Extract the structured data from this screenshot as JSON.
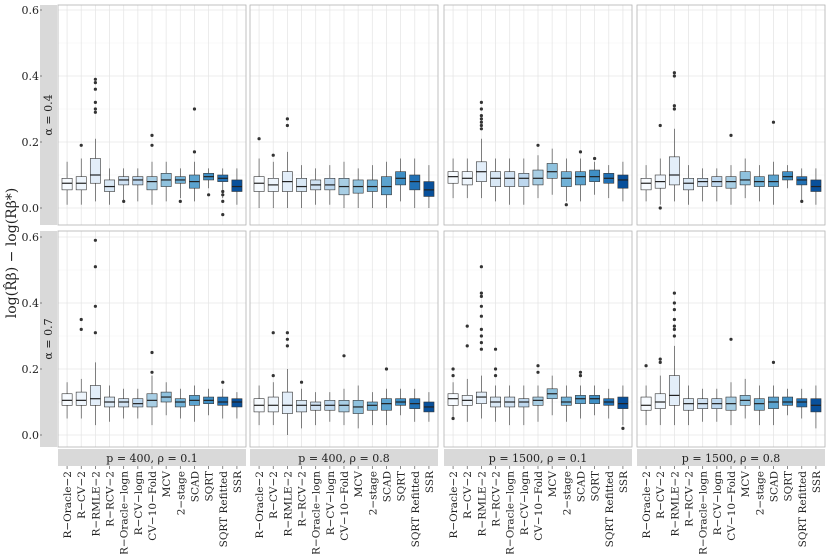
{
  "chart_data": {
    "type": "boxplot",
    "ylabel": "log(R̂β) − log(Rβ*)",
    "ylim": [
      0,
      0.6
    ],
    "yticks": [
      0.0,
      0.2,
      0.4,
      0.6
    ],
    "ytick_labels": [
      "0.0",
      "0.2",
      "0.4",
      "0.6"
    ],
    "methods": [
      "R−Oracle−2",
      "R−CV−2",
      "R−RMLE−2",
      "R−RCV−2",
      "R−Oracle−logn",
      "R−CV−logn",
      "CV−10−Fold",
      "MCV",
      "2−stage",
      "SCAD",
      "SQRT",
      "SQRT Refitted",
      "SSR"
    ],
    "method_colors": [
      "#f7fbff",
      "#eef5fc",
      "#e3eef9",
      "#d9e8f5",
      "#cfe1f2",
      "#bdd7ee",
      "#a8cee4",
      "#8fc2de",
      "#72b2d7",
      "#5ba3cf",
      "#3f8fc5",
      "#2171b5",
      "#08509b"
    ],
    "rows": [
      "α = 0.4",
      "α = 0.7"
    ],
    "columns": [
      "p = 400, ρ = 0.1",
      "p = 400, ρ = 0.8",
      "p = 1500, ρ = 0.1",
      "p = 1500, ρ = 0.8"
    ],
    "panels": [
      [
        [
          [
            0.01,
            0.055,
            0.075,
            0.09,
            0.14
          ],
          [
            0.01,
            0.055,
            0.075,
            0.095,
            0.15
          ],
          [
            0.02,
            0.075,
            0.1,
            0.15,
            0.21
          ],
          [
            0.01,
            0.05,
            0.065,
            0.085,
            0.12
          ],
          [
            0.02,
            0.07,
            0.085,
            0.095,
            0.12
          ],
          [
            0.02,
            0.07,
            0.085,
            0.095,
            0.12
          ],
          [
            0.01,
            0.055,
            0.08,
            0.095,
            0.14
          ],
          [
            0.02,
            0.065,
            0.085,
            0.105,
            0.14
          ],
          [
            0.03,
            0.075,
            0.085,
            0.095,
            0.12
          ],
          [
            0.02,
            0.06,
            0.08,
            0.1,
            0.14
          ],
          [
            0.06,
            0.085,
            0.095,
            0.105,
            0.12
          ],
          [
            0.03,
            0.08,
            0.09,
            0.1,
            0.12
          ],
          [
            0.01,
            0.05,
            0.065,
            0.085,
            0.12
          ]
        ],
        [
          [
            0.0,
            0.05,
            0.075,
            0.095,
            0.15
          ],
          [
            0.0,
            0.05,
            0.07,
            0.09,
            0.14
          ],
          [
            0.0,
            0.05,
            0.08,
            0.11,
            0.17
          ],
          [
            0.0,
            0.05,
            0.065,
            0.09,
            0.13
          ],
          [
            0.01,
            0.055,
            0.07,
            0.085,
            0.12
          ],
          [
            0.01,
            0.055,
            0.07,
            0.09,
            0.13
          ],
          [
            0.0,
            0.04,
            0.065,
            0.09,
            0.14
          ],
          [
            0.0,
            0.045,
            0.065,
            0.085,
            0.12
          ],
          [
            0.0,
            0.05,
            0.065,
            0.085,
            0.13
          ],
          [
            0.0,
            0.04,
            0.065,
            0.095,
            0.14
          ],
          [
            0.02,
            0.07,
            0.09,
            0.11,
            0.15
          ],
          [
            0.0,
            0.055,
            0.08,
            0.1,
            0.15
          ],
          [
            0.0,
            0.035,
            0.055,
            0.08,
            0.13
          ]
        ],
        [
          [
            0.03,
            0.075,
            0.095,
            0.11,
            0.15
          ],
          [
            0.03,
            0.07,
            0.09,
            0.11,
            0.15
          ],
          [
            0.03,
            0.08,
            0.11,
            0.14,
            0.21
          ],
          [
            0.02,
            0.065,
            0.09,
            0.11,
            0.15
          ],
          [
            0.01,
            0.065,
            0.09,
            0.11,
            0.15
          ],
          [
            0.01,
            0.065,
            0.09,
            0.105,
            0.15
          ],
          [
            0.03,
            0.07,
            0.09,
            0.115,
            0.16
          ],
          [
            0.04,
            0.09,
            0.11,
            0.135,
            0.18
          ],
          [
            0.02,
            0.065,
            0.09,
            0.11,
            0.15
          ],
          [
            0.02,
            0.07,
            0.095,
            0.11,
            0.15
          ],
          [
            0.04,
            0.08,
            0.095,
            0.115,
            0.14
          ],
          [
            0.03,
            0.075,
            0.09,
            0.105,
            0.13
          ],
          [
            0.02,
            0.06,
            0.085,
            0.1,
            0.14
          ]
        ],
        [
          [
            0.02,
            0.055,
            0.075,
            0.09,
            0.13
          ],
          [
            0.01,
            0.06,
            0.08,
            0.1,
            0.15
          ],
          [
            0.02,
            0.07,
            0.1,
            0.155,
            0.24
          ],
          [
            0.01,
            0.055,
            0.075,
            0.09,
            0.13
          ],
          [
            0.02,
            0.065,
            0.08,
            0.09,
            0.12
          ],
          [
            0.02,
            0.065,
            0.08,
            0.095,
            0.12
          ],
          [
            0.01,
            0.06,
            0.08,
            0.095,
            0.13
          ],
          [
            0.03,
            0.07,
            0.085,
            0.11,
            0.15
          ],
          [
            0.02,
            0.065,
            0.08,
            0.095,
            0.13
          ],
          [
            0.01,
            0.065,
            0.08,
            0.1,
            0.14
          ],
          [
            0.06,
            0.085,
            0.095,
            0.11,
            0.13
          ],
          [
            0.02,
            0.07,
            0.085,
            0.095,
            0.12
          ],
          [
            0.01,
            0.05,
            0.065,
            0.085,
            0.12
          ]
        ]
      ],
      [
        [
          [
            0.05,
            0.09,
            0.105,
            0.125,
            0.16
          ],
          [
            0.05,
            0.09,
            0.105,
            0.13,
            0.17
          ],
          [
            0.03,
            0.09,
            0.11,
            0.15,
            0.22
          ],
          [
            0.04,
            0.085,
            0.1,
            0.115,
            0.15
          ],
          [
            0.05,
            0.085,
            0.1,
            0.11,
            0.14
          ],
          [
            0.05,
            0.085,
            0.095,
            0.11,
            0.14
          ],
          [
            0.03,
            0.085,
            0.105,
            0.125,
            0.18
          ],
          [
            0.06,
            0.1,
            0.115,
            0.13,
            0.16
          ],
          [
            0.05,
            0.085,
            0.1,
            0.11,
            0.14
          ],
          [
            0.04,
            0.09,
            0.105,
            0.12,
            0.15
          ],
          [
            0.06,
            0.095,
            0.105,
            0.115,
            0.14
          ],
          [
            0.05,
            0.09,
            0.1,
            0.115,
            0.14
          ],
          [
            0.05,
            0.085,
            0.1,
            0.11,
            0.13
          ]
        ],
        [
          [
            0.03,
            0.07,
            0.09,
            0.11,
            0.15
          ],
          [
            0.03,
            0.07,
            0.09,
            0.115,
            0.16
          ],
          [
            0.0,
            0.065,
            0.09,
            0.13,
            0.2
          ],
          [
            0.02,
            0.07,
            0.09,
            0.105,
            0.14
          ],
          [
            0.03,
            0.075,
            0.09,
            0.1,
            0.13
          ],
          [
            0.04,
            0.075,
            0.09,
            0.105,
            0.13
          ],
          [
            0.03,
            0.07,
            0.09,
            0.105,
            0.14
          ],
          [
            0.02,
            0.065,
            0.085,
            0.105,
            0.15
          ],
          [
            0.03,
            0.075,
            0.09,
            0.1,
            0.13
          ],
          [
            0.03,
            0.075,
            0.095,
            0.11,
            0.14
          ],
          [
            0.06,
            0.09,
            0.1,
            0.11,
            0.14
          ],
          [
            0.04,
            0.08,
            0.095,
            0.11,
            0.14
          ],
          [
            0.04,
            0.07,
            0.085,
            0.1,
            0.13
          ]
        ],
        [
          [
            0.05,
            0.09,
            0.11,
            0.125,
            0.16
          ],
          [
            0.04,
            0.09,
            0.105,
            0.12,
            0.17
          ],
          [
            0.05,
            0.095,
            0.115,
            0.13,
            0.18
          ],
          [
            0.04,
            0.085,
            0.1,
            0.115,
            0.15
          ],
          [
            0.03,
            0.085,
            0.1,
            0.115,
            0.15
          ],
          [
            0.03,
            0.085,
            0.1,
            0.11,
            0.15
          ],
          [
            0.04,
            0.09,
            0.105,
            0.115,
            0.15
          ],
          [
            0.06,
            0.11,
            0.125,
            0.14,
            0.18
          ],
          [
            0.04,
            0.09,
            0.1,
            0.115,
            0.15
          ],
          [
            0.05,
            0.095,
            0.11,
            0.12,
            0.15
          ],
          [
            0.06,
            0.095,
            0.11,
            0.12,
            0.15
          ],
          [
            0.05,
            0.09,
            0.1,
            0.11,
            0.14
          ],
          [
            0.03,
            0.08,
            0.095,
            0.115,
            0.15
          ]
        ],
        [
          [
            0.03,
            0.075,
            0.09,
            0.115,
            0.15
          ],
          [
            0.03,
            0.08,
            0.1,
            0.125,
            0.18
          ],
          [
            0.03,
            0.09,
            0.12,
            0.18,
            0.27
          ],
          [
            0.03,
            0.075,
            0.095,
            0.11,
            0.15
          ],
          [
            0.04,
            0.08,
            0.095,
            0.11,
            0.14
          ],
          [
            0.04,
            0.08,
            0.095,
            0.11,
            0.14
          ],
          [
            0.03,
            0.075,
            0.095,
            0.115,
            0.16
          ],
          [
            0.05,
            0.09,
            0.105,
            0.12,
            0.17
          ],
          [
            0.03,
            0.075,
            0.095,
            0.11,
            0.15
          ],
          [
            0.03,
            0.08,
            0.1,
            0.115,
            0.15
          ],
          [
            0.06,
            0.09,
            0.1,
            0.115,
            0.14
          ],
          [
            0.05,
            0.085,
            0.1,
            0.11,
            0.14
          ],
          [
            0.02,
            0.07,
            0.09,
            0.11,
            0.15
          ]
        ]
      ]
    ],
    "outliers": [
      [
        [
          [],
          [
            0.19
          ],
          [
            0.3,
            0.29,
            0.32,
            0.36,
            0.38,
            0.39
          ],
          [],
          [
            0.02
          ],
          [],
          [
            0.19,
            0.22
          ],
          [],
          [
            0.02
          ],
          [
            0.17,
            0.3
          ],
          [
            0.04
          ],
          [
            0.02,
            0.04,
            0.05,
            -0.02
          ],
          []
        ],
        [
          [
            0.21
          ],
          [
            0.16
          ],
          [
            0.25,
            0.27
          ],
          [],
          [],
          [],
          [],
          [],
          [],
          [],
          [],
          [],
          []
        ],
        [
          [],
          [],
          [
            0.24,
            0.25,
            0.26,
            0.27,
            0.28,
            0.3,
            0.32
          ],
          [],
          [],
          [],
          [
            0.19
          ],
          [],
          [
            0.01
          ],
          [
            0.17
          ],
          [
            0.15
          ],
          [],
          []
        ],
        [
          [],
          [
            0.0,
            0.25
          ],
          [
            0.3,
            0.31,
            0.4,
            0.41
          ],
          [],
          [],
          [],
          [
            0.22
          ],
          [],
          [],
          [
            0.26
          ],
          [],
          [
            0.02
          ],
          []
        ]
      ],
      [
        [
          [],
          [
            0.32,
            0.35
          ],
          [
            0.31,
            0.39,
            0.51,
            0.59
          ],
          [],
          [],
          [],
          [
            0.19,
            0.25
          ],
          [],
          [],
          [],
          [],
          [
            0.16
          ],
          []
        ],
        [
          [],
          [
            0.18,
            0.31
          ],
          [
            0.27,
            0.29,
            0.31
          ],
          [
            0.16
          ],
          [],
          [],
          [
            0.24
          ],
          [],
          [],
          [
            0.2
          ],
          [],
          [],
          []
        ],
        [
          [
            0.05,
            0.18,
            0.2
          ],
          [
            0.27,
            0.33
          ],
          [
            0.26,
            0.28,
            0.3,
            0.32,
            0.36,
            0.39,
            0.42,
            0.43,
            0.51
          ],
          [
            0.18,
            0.2,
            0.26
          ],
          [],
          [],
          [
            0.19,
            0.21
          ],
          [],
          [],
          [
            0.18,
            0.19
          ],
          [],
          [],
          [
            0.02
          ]
        ],
        [
          [
            0.21
          ],
          [
            0.22,
            0.23
          ],
          [
            0.3,
            0.32,
            0.33,
            0.35,
            0.38,
            0.4,
            0.43
          ],
          [],
          [],
          [],
          [
            0.29
          ],
          [],
          [],
          [
            0.22
          ],
          [],
          [],
          []
        ]
      ]
    ]
  }
}
